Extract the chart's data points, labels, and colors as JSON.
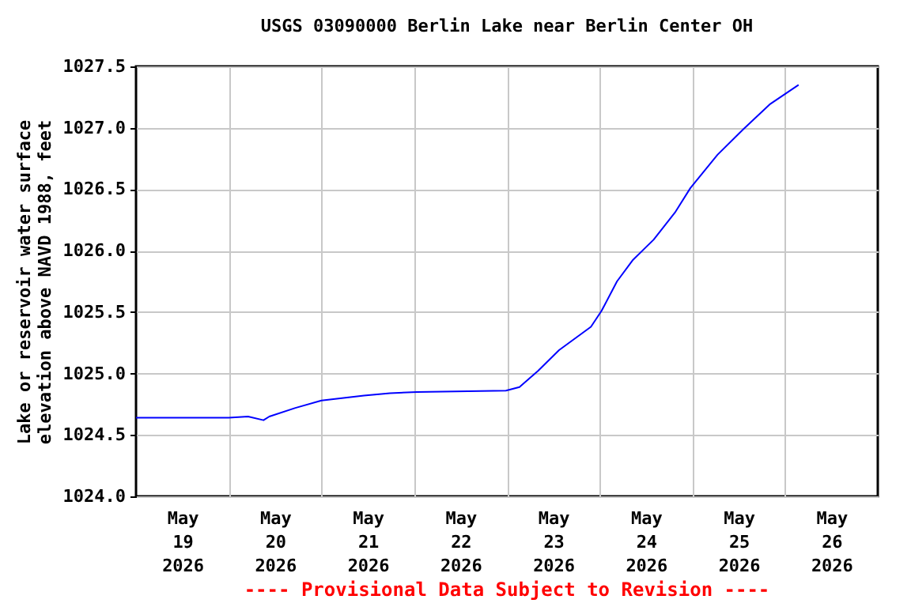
{
  "chart_data": {
    "type": "line",
    "title": "USGS 03090000 Berlin Lake near Berlin Center OH",
    "ylabel": "Lake or reservoir water surface elevation above NAVD 1988, feet",
    "annotations": [
      "---- Provisional Data Subject to Revision ----"
    ],
    "x": [
      "2026-05-19T00:00",
      "2026-05-19T12:00",
      "2026-05-20T00:00",
      "2026-05-20T05:00",
      "2026-05-20T09:00",
      "2026-05-20T10:30",
      "2026-05-20T17:15",
      "2026-05-21T00:00",
      "2026-05-21T11:00",
      "2026-05-21T17:45",
      "2026-05-22T00:45",
      "2026-05-22T23:45",
      "2026-05-23T03:15",
      "2026-05-23T08:00",
      "2026-05-23T13:30",
      "2026-05-23T21:45",
      "2026-05-24T00:30",
      "2026-05-24T04:30",
      "2026-05-24T08:30",
      "2026-05-24T14:00",
      "2026-05-24T19:30",
      "2026-05-24T23:30",
      "2026-05-25T06:30",
      "2026-05-25T13:15",
      "2026-05-25T20:00",
      "2026-05-26T03:30"
    ],
    "series": [
      {
        "color": "#0000ff",
        "values": [
          1024.64,
          1024.64,
          1024.64,
          1024.65,
          1024.62,
          1024.65,
          1024.72,
          1024.78,
          1024.82,
          1024.84,
          1024.85,
          1024.86,
          1024.89,
          1025.02,
          1025.19,
          1025.38,
          1025.51,
          1025.75,
          1025.92,
          1026.09,
          1026.31,
          1026.51,
          1026.78,
          1026.99,
          1027.19,
          1027.35
        ]
      }
    ],
    "xlim": [
      "2026-05-19T00:00",
      "2026-05-27T00:00"
    ],
    "xticks": [
      {
        "value": "2026-05-19T12:00",
        "label": "May 19 2026"
      },
      {
        "value": "2026-05-20T00:00",
        "label": null
      },
      {
        "value": "2026-05-20T12:00",
        "label": "May 20 2026"
      },
      {
        "value": "2026-05-21T00:00",
        "label": null
      },
      {
        "value": "2026-05-21T12:00",
        "label": "May 21 2026"
      },
      {
        "value": "2026-05-22T00:00",
        "label": null
      },
      {
        "value": "2026-05-22T12:00",
        "label": "May 22 2026"
      },
      {
        "value": "2026-05-23T00:00",
        "label": null
      },
      {
        "value": "2026-05-23T12:00",
        "label": "May 23 2026"
      },
      {
        "value": "2026-05-24T00:00",
        "label": null
      },
      {
        "value": "2026-05-24T12:00",
        "label": "May 24 2026"
      },
      {
        "value": "2026-05-25T00:00",
        "label": null
      },
      {
        "value": "2026-05-25T12:00",
        "label": "May 25 2026"
      },
      {
        "value": "2026-05-26T00:00",
        "label": null
      },
      {
        "value": "2026-05-26T12:00",
        "label": "May 26 2026"
      }
    ],
    "ylim": [
      1024.0,
      1027.5
    ],
    "yticks": [
      {
        "value": 1024.0,
        "label": "1024.0"
      },
      {
        "value": 1024.5,
        "label": "1024.5"
      },
      {
        "value": 1025.0,
        "label": "1025.0"
      },
      {
        "value": 1025.5,
        "label": "1025.5"
      },
      {
        "value": 1026.0,
        "label": "1026.0"
      },
      {
        "value": 1026.5,
        "label": "1026.5"
      },
      {
        "value": 1027.0,
        "label": "1027.0"
      },
      {
        "value": 1027.5,
        "label": "1027.5"
      }
    ],
    "grid": true,
    "legend": false,
    "marker": "none",
    "line_style": "solid"
  }
}
